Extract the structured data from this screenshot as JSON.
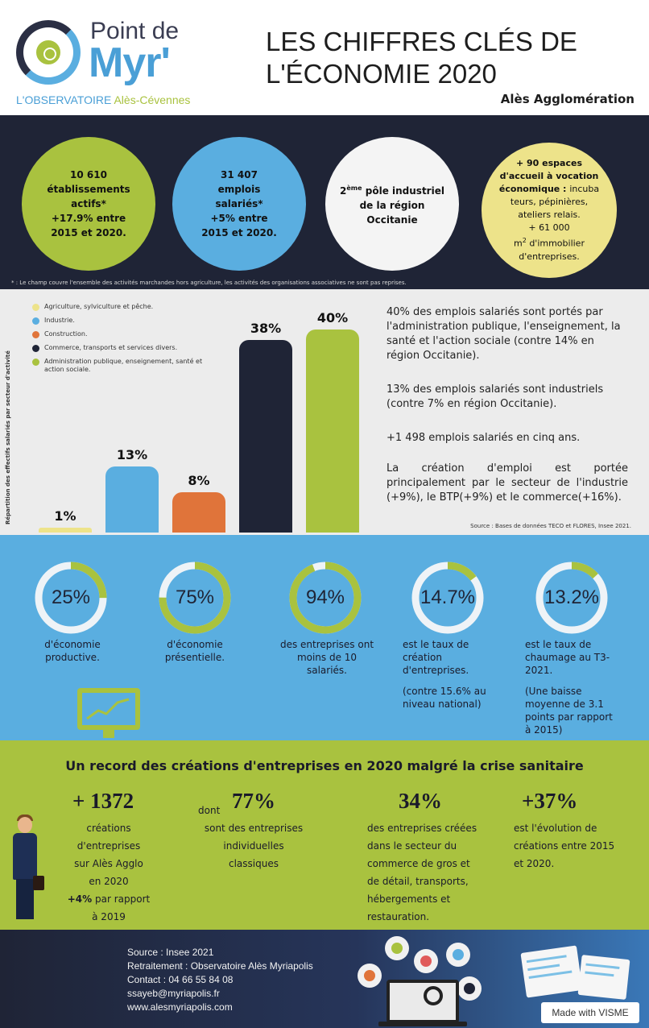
{
  "header": {
    "logo_line1": "Point de",
    "logo_line2": "Myr'",
    "logo_sub_a": "L'OBSERVATOIRE",
    "logo_sub_b": "Alès-Cévennes",
    "title_line1": "LES CHIFFRES CLÉS DE",
    "title_line2": "L'ÉCONOMIE 2020",
    "subtitle": "Alès Agglomération"
  },
  "key_figures": {
    "c1": [
      "10 610",
      "établissements",
      "actifs*",
      "+17.9% entre",
      "2015 et 2020."
    ],
    "c2": [
      "31 407",
      "emplois",
      "salariés*",
      "+5% entre",
      "2015 et 2020."
    ],
    "c3": {
      "num": "2",
      "sup": "ème",
      "rest": "pôle industriel",
      "l2": "de la région",
      "l3": "Occitanie"
    },
    "c4": {
      "l1": "+ 90 espaces",
      "l2": "d'accueil à vocation",
      "l3": "économique :",
      "l3b": "incuba",
      "l4": "teurs, pépinières,",
      "l5": "ateliers relais.",
      "l6": "+ 61 000",
      "l7": "m",
      "l7sup": "2",
      "l7b": "d'immobilier",
      "l8": "d'entreprises."
    },
    "footnote": "* : Le champ couvre l'ensemble des activités marchandes hors agriculture, les activités des organisations associatives ne sont pas reprises."
  },
  "chart_data": {
    "type": "bar",
    "ylabel": "Répartition des effectifs salariés par secteur d'activité",
    "categories": [
      "Agriculture, sylviculture et pêche.",
      "Industrie.",
      "Construction.",
      "Commerce, transports et services divers.",
      "Administration publique, enseignement, santé et action sociale."
    ],
    "values": [
      1,
      13,
      8,
      38,
      40
    ],
    "labels": [
      "1%",
      "13%",
      "8%",
      "38%",
      "40%"
    ],
    "colors": [
      "#ede38a",
      "#5aaee0",
      "#e0743a",
      "#1f2436",
      "#a9c23f"
    ],
    "ylim": [
      0,
      40
    ]
  },
  "chart_text": {
    "p1": "40% des emplois salariés sont portés par l'administration publique, l'enseignement, la santé et l'action sociale (contre 14% en région Occitanie).",
    "p2": "13% des emplois salariés sont industriels (contre 7% en région Occitanie).",
    "p3": "+1 498 emplois salariés en cinq ans.",
    "p4": "La création d'emploi est portée principalement par le secteur de l'industrie (+9%), le BTP(+9%) et le commerce(+16%).",
    "source": "Source : Bases de données TECO et FLORES, Insee 2021."
  },
  "rings": [
    {
      "value": "25%",
      "fraction": 0.25,
      "text": "d'économie productive.",
      "extra": ""
    },
    {
      "value": "75%",
      "fraction": 0.75,
      "text": "d'économie présentielle.",
      "extra": ""
    },
    {
      "value": "94%",
      "fraction": 0.94,
      "text": "des entreprises ont moins de 10 salariés.",
      "extra": ""
    },
    {
      "value": "14.7%",
      "fraction": 0.147,
      "text": "est le taux de création d'entreprises.",
      "extra": "(contre 15.6% au niveau national)"
    },
    {
      "value": "13.2%",
      "fraction": 0.132,
      "text": "est le taux de chaumage au T3-2021.",
      "extra": "(Une baisse moyenne de 3.1 points par rapport à 2015)"
    }
  ],
  "creations": {
    "title": "Un record des créations d'entreprises en 2020 malgré la crise sanitaire",
    "n1": "+ 1372",
    "t1": [
      "créations",
      "d'entreprises",
      "sur Alès Agglo",
      "en 2020"
    ],
    "t1b": "+4%",
    "t1c": "par rapport",
    "t1d": "à 2019",
    "dont": "dont",
    "n2": "77%",
    "t2": [
      "sont des entreprises",
      "individuelles",
      "classiques"
    ],
    "n3": "34%",
    "t3": [
      "des entreprises créées",
      "dans le secteur du",
      "commerce de gros et",
      "de détail, transports,",
      "hébergements et",
      "restauration."
    ],
    "n4": "+37%",
    "t4": [
      "est l'évolution de",
      "créations entre 2015",
      "et 2020."
    ]
  },
  "footer": {
    "lines": [
      "Source : Insee 2021",
      "Retraitement : Observatoire Alès Myriapolis",
      "Contact : 04 66 55 84 08",
      "ssayeb@myriapolis.fr",
      "www.alesmyriapolis.com"
    ],
    "visme": "Made with VISME"
  }
}
